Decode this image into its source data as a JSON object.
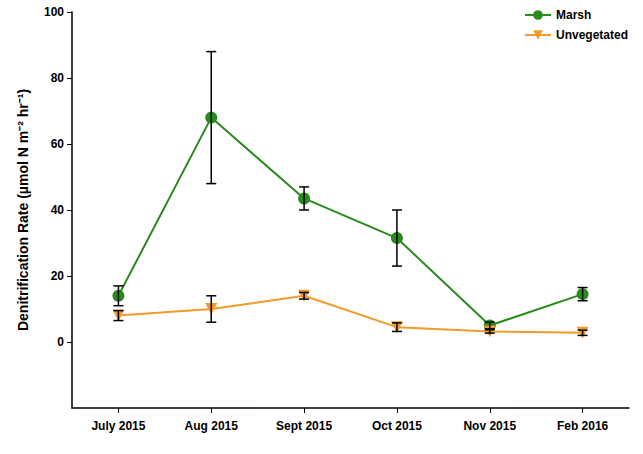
{
  "chart_data": {
    "type": "line",
    "y_label": "Denitrification Rate (µmol N m⁻² hr⁻¹)",
    "categories": [
      "July 2015",
      "Aug 2015",
      "Sept 2015",
      "Oct 2015",
      "Nov 2015",
      "Feb 2016"
    ],
    "series": [
      {
        "name": "Marsh",
        "color": "#2a8a1e",
        "marker": "circle",
        "values": [
          14,
          68,
          43.5,
          31.5,
          5,
          14.5
        ],
        "errors": [
          3,
          20,
          3.5,
          8.5,
          1,
          2
        ]
      },
      {
        "name": "Unvegetated",
        "color": "#f39a2a",
        "marker": "triangle_down",
        "values": [
          8,
          10,
          14,
          4.5,
          3.2,
          2.8
        ],
        "errors": [
          1.5,
          4,
          1,
          1.3,
          0.5,
          0.8
        ]
      }
    ],
    "ylim": [
      -20,
      100
    ],
    "yticks": [
      0,
      20,
      40,
      60,
      80,
      100
    ],
    "grid": false,
    "legend": "top-right"
  }
}
